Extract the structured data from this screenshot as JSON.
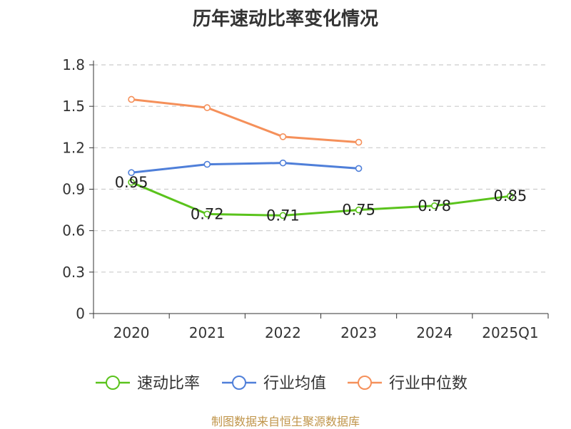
{
  "chart_data": {
    "type": "line",
    "title": "历年速动比率变化情况",
    "categories": [
      "2020",
      "2021",
      "2022",
      "2023",
      "2024",
      "2025Q1"
    ],
    "ylim": [
      0,
      1.8
    ],
    "yticks": [
      "0",
      "0.3",
      "0.6",
      "0.9",
      "1.2",
      "1.5",
      "1.8"
    ],
    "grid": true,
    "legend_position": "bottom",
    "series": [
      {
        "name": "速动比率",
        "color": "#5ac31c",
        "values": [
          0.95,
          0.72,
          0.71,
          0.75,
          0.78,
          0.85
        ],
        "labels": [
          "0.95",
          "0.72",
          "0.71",
          "0.75",
          "0.78",
          "0.85"
        ]
      },
      {
        "name": "行业均值",
        "color": "#4f7fd9",
        "values": [
          1.02,
          1.08,
          1.09,
          1.05,
          null,
          null
        ]
      },
      {
        "name": "行业中位数",
        "color": "#f5905a",
        "values": [
          1.55,
          1.49,
          1.28,
          1.24,
          null,
          null
        ]
      }
    ]
  },
  "source": "制图数据来自恒生聚源数据库"
}
